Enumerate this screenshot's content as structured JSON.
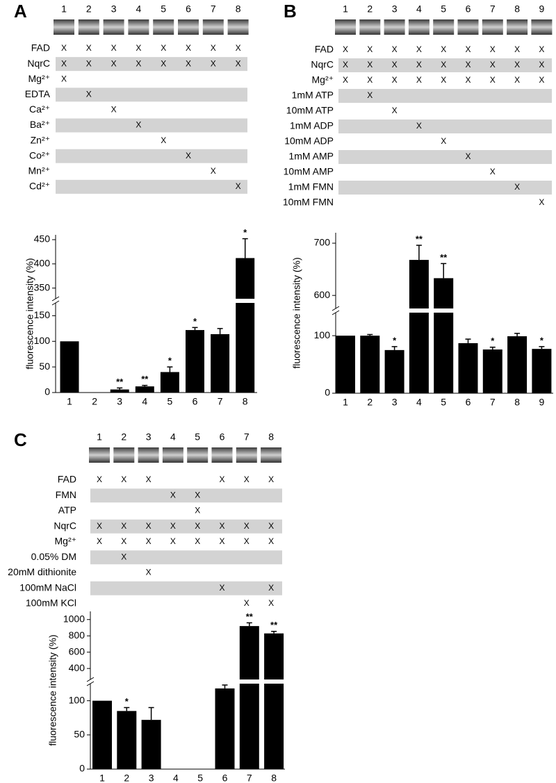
{
  "panels": [
    {
      "label": "A",
      "lanes": [
        "1",
        "2",
        "3",
        "4",
        "5",
        "6",
        "7",
        "8"
      ],
      "rows": [
        {
          "name": "FAD",
          "cells": [
            "X",
            "X",
            "X",
            "X",
            "X",
            "X",
            "X",
            "X"
          ]
        },
        {
          "name": "NqrC",
          "cells": [
            "X",
            "X",
            "X",
            "X",
            "X",
            "X",
            "X",
            "X"
          ]
        },
        {
          "name": "Mg²⁺",
          "cells": [
            "X",
            null,
            null,
            null,
            null,
            null,
            null,
            null
          ]
        },
        {
          "name": "EDTA",
          "cells": [
            null,
            "X",
            null,
            null,
            null,
            null,
            null,
            null
          ]
        },
        {
          "name": "Ca²⁺",
          "cells": [
            null,
            null,
            "X",
            null,
            null,
            null,
            null,
            null
          ]
        },
        {
          "name": "Ba²⁺",
          "cells": [
            null,
            null,
            null,
            "X",
            null,
            null,
            null,
            null
          ]
        },
        {
          "name": "Zn²⁺",
          "cells": [
            null,
            null,
            null,
            null,
            "X",
            null,
            null,
            null
          ]
        },
        {
          "name": "Co²⁺",
          "cells": [
            null,
            null,
            null,
            null,
            null,
            "X",
            null,
            null
          ]
        },
        {
          "name": "Mn²⁺",
          "cells": [
            null,
            null,
            null,
            null,
            null,
            null,
            "X",
            null
          ]
        },
        {
          "name": "Cd²⁺",
          "cells": [
            null,
            null,
            null,
            null,
            null,
            null,
            null,
            "X"
          ]
        }
      ]
    },
    {
      "label": "B",
      "lanes": [
        "1",
        "2",
        "3",
        "4",
        "5",
        "6",
        "7",
        "8",
        "9"
      ],
      "rows": [
        {
          "name": "FAD",
          "cells": [
            "X",
            "X",
            "X",
            "X",
            "X",
            "X",
            "X",
            "X",
            "X"
          ]
        },
        {
          "name": "NqrC",
          "cells": [
            "X",
            "X",
            "X",
            "X",
            "X",
            "X",
            "X",
            "X",
            "X"
          ]
        },
        {
          "name": "Mg²⁺",
          "cells": [
            "X",
            "X",
            "X",
            "X",
            "X",
            "X",
            "X",
            "X",
            "X"
          ]
        },
        {
          "name": "1mM ATP",
          "cells": [
            null,
            "X",
            null,
            null,
            null,
            null,
            null,
            null,
            null
          ]
        },
        {
          "name": "10mM ATP",
          "cells": [
            null,
            null,
            "X",
            null,
            null,
            null,
            null,
            null,
            null
          ]
        },
        {
          "name": "1mM ADP",
          "cells": [
            null,
            null,
            null,
            "X",
            null,
            null,
            null,
            null,
            null
          ]
        },
        {
          "name": "10mM ADP",
          "cells": [
            null,
            null,
            null,
            null,
            "X",
            null,
            null,
            null,
            null
          ]
        },
        {
          "name": "1mM AMP",
          "cells": [
            null,
            null,
            null,
            null,
            null,
            "X",
            null,
            null,
            null
          ]
        },
        {
          "name": "10mM AMP",
          "cells": [
            null,
            null,
            null,
            null,
            null,
            null,
            "X",
            null,
            null
          ]
        },
        {
          "name": "1mM FMN",
          "cells": [
            null,
            null,
            null,
            null,
            null,
            null,
            null,
            "X",
            null
          ]
        },
        {
          "name": "10mM FMN",
          "cells": [
            null,
            null,
            null,
            null,
            null,
            null,
            null,
            null,
            "X"
          ]
        }
      ]
    },
    {
      "label": "C",
      "lanes": [
        "1",
        "2",
        "3",
        "4",
        "5",
        "6",
        "7",
        "8"
      ],
      "rows": [
        {
          "name": "FAD",
          "cells": [
            "X",
            "X",
            "X",
            null,
            null,
            "X",
            "X",
            "X"
          ]
        },
        {
          "name": "FMN",
          "cells": [
            null,
            null,
            null,
            "X",
            "X",
            null,
            null,
            null
          ]
        },
        {
          "name": "ATP",
          "cells": [
            null,
            null,
            null,
            null,
            "X",
            null,
            null,
            null
          ]
        },
        {
          "name": "NqrC",
          "cells": [
            "X",
            "X",
            "X",
            "X",
            "X",
            "X",
            "X",
            "X"
          ]
        },
        {
          "name": "Mg²⁺",
          "cells": [
            "X",
            "X",
            "X",
            "X",
            "X",
            "X",
            "X",
            "X"
          ]
        },
        {
          "name": "0.05% DM",
          "cells": [
            null,
            "X",
            null,
            null,
            null,
            null,
            null,
            null
          ]
        },
        {
          "name": "20mM dithionite",
          "cells": [
            null,
            null,
            "X",
            null,
            null,
            null,
            null,
            null
          ]
        },
        {
          "name": "100mM NaCl",
          "cells": [
            null,
            null,
            null,
            null,
            null,
            "X",
            null,
            "X"
          ]
        },
        {
          "name": "100mM KCl",
          "cells": [
            null,
            null,
            null,
            null,
            null,
            null,
            "X",
            "X"
          ]
        }
      ]
    }
  ],
  "chart_data": [
    {
      "type": "bar",
      "ylabel": "fluorescence intensity (%)",
      "color": "#000000",
      "categories": [
        "1",
        "2",
        "3",
        "4",
        "5",
        "6",
        "7",
        "8"
      ],
      "values": [
        100,
        0,
        6,
        12,
        40,
        122,
        114,
        412
      ],
      "errors": [
        0,
        0,
        3,
        2,
        10,
        5,
        11,
        40
      ],
      "significance": [
        null,
        null,
        "**",
        "**",
        "*",
        "*",
        null,
        "*"
      ],
      "ylim": [
        0,
        460
      ],
      "ybreak": [
        175,
        328
      ],
      "yticks": [
        0,
        50,
        100,
        150,
        350,
        400,
        450
      ]
    },
    {
      "type": "bar",
      "ylabel": "fluorescence intensity (%)",
      "color": "#000000",
      "categories": [
        "1",
        "2",
        "3",
        "4",
        "5",
        "6",
        "7",
        "8",
        "9"
      ],
      "values": [
        100,
        100,
        75,
        668,
        633,
        87,
        76,
        99,
        77
      ],
      "errors": [
        0,
        2,
        6,
        28,
        28,
        7,
        4,
        5,
        4
      ],
      "significance": [
        null,
        null,
        "*",
        "**",
        "**",
        null,
        "*",
        null,
        "*"
      ],
      "ylim": [
        0,
        720
      ],
      "ybreak": [
        140,
        575
      ],
      "yticks": [
        0,
        100,
        600,
        700
      ]
    },
    {
      "type": "bar",
      "ylabel": "fluorescence intensity (%)",
      "color": "#000000",
      "categories": [
        "1",
        "2",
        "3",
        "4",
        "5",
        "6",
        "7",
        "8"
      ],
      "values": [
        100,
        85,
        72,
        0,
        0,
        118,
        920,
        830
      ],
      "errors": [
        0,
        5,
        18,
        0,
        0,
        5,
        40,
        25
      ],
      "significance": [
        null,
        "*",
        null,
        null,
        null,
        null,
        "**",
        "**"
      ],
      "ylim": [
        0,
        1100
      ],
      "ybreak": [
        125,
        265
      ],
      "yticks": [
        0,
        50,
        100,
        400,
        600,
        800,
        1000
      ]
    }
  ]
}
